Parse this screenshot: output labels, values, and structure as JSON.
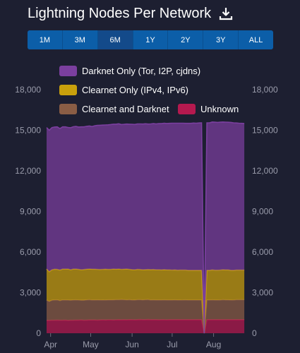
{
  "header": {
    "title": "Lightning Nodes Per Network"
  },
  "icons": {
    "download": "download-icon"
  },
  "ranges": [
    {
      "label": "1M",
      "active": false
    },
    {
      "label": "3M",
      "active": false
    },
    {
      "label": "6M",
      "active": true
    },
    {
      "label": "1Y",
      "active": false
    },
    {
      "label": "2Y",
      "active": false
    },
    {
      "label": "3Y",
      "active": false
    },
    {
      "label": "ALL",
      "active": false
    }
  ],
  "colors": {
    "background": "#1d1f31",
    "darknet": "#7b3f9f",
    "clearnet": "#c9a00c",
    "clearnet_darknet": "#8a5d45",
    "unknown": "#b5194f",
    "accent": "#0c5ea8"
  },
  "chart_data": {
    "type": "area",
    "stacked": true,
    "title": "Lightning Nodes Per Network",
    "xlabel": "",
    "ylabel": "",
    "ylim": [
      0,
      18000
    ],
    "yticks": [
      0,
      3000,
      6000,
      9000,
      12000,
      15000,
      18000
    ],
    "ytick_labels": [
      "0",
      "3,000",
      "6,000",
      "9,000",
      "12,000",
      "15,000",
      "18,000"
    ],
    "x_tick_labels": [
      "Apr",
      "May",
      "Jun",
      "Jul",
      "Aug"
    ],
    "x_tick_days": [
      3,
      33,
      64,
      94,
      125
    ],
    "x_range_days": [
      0,
      149
    ],
    "grid": false,
    "legend_placement": "top",
    "x_days": [
      0,
      2,
      4,
      6,
      8,
      10,
      12,
      14,
      16,
      18,
      20,
      22,
      24,
      26,
      28,
      30,
      32,
      34,
      36,
      38,
      40,
      42,
      44,
      46,
      48,
      50,
      52,
      54,
      56,
      58,
      60,
      62,
      64,
      66,
      68,
      70,
      72,
      74,
      76,
      78,
      80,
      82,
      84,
      86,
      88,
      90,
      92,
      94,
      96,
      98,
      100,
      102,
      104,
      106,
      108,
      110,
      112,
      114,
      116,
      118,
      120,
      122,
      124,
      126,
      128,
      130,
      132,
      134,
      136,
      138,
      140,
      142,
      144,
      146,
      148
    ],
    "series": [
      {
        "name": "Unknown",
        "values": [
          950,
          950,
          960,
          960,
          970,
          960,
          960,
          970,
          950,
          960,
          960,
          970,
          970,
          980,
          960,
          970,
          980,
          980,
          980,
          970,
          980,
          990,
          980,
          990,
          990,
          980,
          990,
          1000,
          990,
          1000,
          990,
          1000,
          1000,
          990,
          1000,
          1010,
          1000,
          1000,
          1010,
          1000,
          1000,
          1000,
          990,
          1000,
          1000,
          990,
          1000,
          1000,
          1000,
          1000,
          1000,
          1000,
          1000,
          1000,
          1000,
          1000,
          1000,
          1000,
          1000,
          0,
          1000,
          1000,
          1000,
          1000,
          1000,
          1000,
          1000,
          1000,
          1000,
          1000,
          1000,
          1000,
          1000,
          1000,
          1000
        ]
      },
      {
        "name": "Clearnet and Darknet",
        "values": [
          1500,
          1400,
          1480,
          1500,
          1500,
          1450,
          1500,
          1490,
          1500,
          1480,
          1500,
          1500,
          1480,
          1460,
          1480,
          1500,
          1500,
          1480,
          1480,
          1500,
          1480,
          1460,
          1480,
          1480,
          1480,
          1490,
          1490,
          1480,
          1500,
          1480,
          1480,
          1480,
          1460,
          1460,
          1480,
          1470,
          1470,
          1480,
          1480,
          1460,
          1470,
          1460,
          1470,
          1460,
          1470,
          1470,
          1460,
          1450,
          1470,
          1450,
          1450,
          1460,
          1470,
          1450,
          1450,
          1450,
          1450,
          1450,
          1450,
          0,
          1450,
          1450,
          1470,
          1450,
          1450,
          1460,
          1480,
          1470,
          1470,
          1450,
          1460,
          1480,
          1480,
          1480,
          1480
        ]
      },
      {
        "name": "Clearnet Only (IPv4, IPv6)",
        "values": [
          2300,
          2200,
          2250,
          2270,
          2250,
          2260,
          2280,
          2280,
          2300,
          2250,
          2280,
          2270,
          2270,
          2250,
          2270,
          2260,
          2270,
          2270,
          2270,
          2250,
          2250,
          2270,
          2270,
          2250,
          2250,
          2270,
          2250,
          2270,
          2230,
          2250,
          2270,
          2240,
          2240,
          2240,
          2240,
          2230,
          2220,
          2220,
          2220,
          2240,
          2240,
          2230,
          2230,
          2220,
          2230,
          2220,
          2220,
          2220,
          2210,
          2210,
          2220,
          2210,
          2200,
          2200,
          2200,
          2200,
          2200,
          2200,
          2200,
          0,
          2200,
          2200,
          2210,
          2210,
          2210,
          2210,
          2210,
          2210,
          2210,
          2200,
          2190,
          2190,
          2190,
          2190,
          2190
        ]
      },
      {
        "name": "Darknet Only (Tor, I2P, cjdns)",
        "values": [
          10450,
          10450,
          10510,
          10510,
          10530,
          10450,
          10510,
          10510,
          10460,
          10500,
          10520,
          10540,
          10520,
          10560,
          10540,
          10560,
          10570,
          10540,
          10600,
          10640,
          10660,
          10660,
          10660,
          10680,
          10700,
          10710,
          10720,
          10730,
          10700,
          10710,
          10720,
          10730,
          10740,
          10740,
          10750,
          10760,
          10770,
          10780,
          10750,
          10770,
          10780,
          10780,
          10800,
          10810,
          10820,
          10820,
          10830,
          10850,
          10840,
          10860,
          10850,
          10850,
          10840,
          10860,
          10860,
          10880,
          10870,
          10890,
          10900,
          0,
          10900,
          10900,
          10930,
          10940,
          10920,
          10930,
          10920,
          10920,
          10910,
          10930,
          10900,
          10870,
          10850,
          10840,
          10830
        ]
      }
    ]
  }
}
